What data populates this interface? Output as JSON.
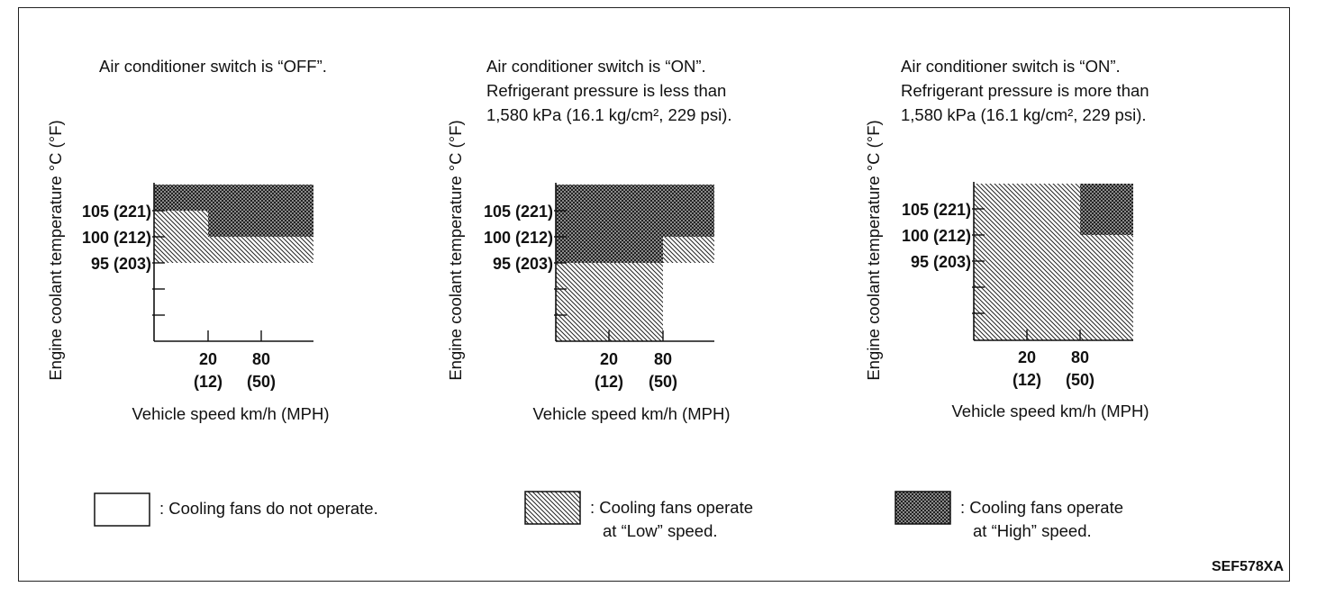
{
  "y_axis_label": "Engine coolant temperature °C (°F)",
  "x_axis_label": "Vehicle speed km/h (MPH)",
  "y_ticks": [
    "105 (221)",
    "100 (212)",
    "95 (203)"
  ],
  "x_ticks": [
    {
      "kmh": "20",
      "mph": "(12)"
    },
    {
      "kmh": "80",
      "mph": "(50)"
    }
  ],
  "panels": [
    {
      "title_lines": [
        "Air conditioner switch is “OFF”."
      ],
      "zones": [
        {
          "mode": "low",
          "from_speed": 0,
          "to_speed": "max",
          "temp_from": 95,
          "temp_to": 100
        },
        {
          "mode": "low",
          "from_speed": 0,
          "to_speed": 20,
          "temp_from": 100,
          "temp_to": 105
        },
        {
          "mode": "high",
          "from_speed": 20,
          "to_speed": "max",
          "temp_from": 100,
          "temp_to": 105
        },
        {
          "mode": "high",
          "from_speed": 0,
          "to_speed": "max",
          "temp_from": 105,
          "temp_to": "max"
        }
      ]
    },
    {
      "title_lines": [
        "Air conditioner switch is “ON”.",
        "Refrigerant pressure is less than",
        "1,580 kPa (16.1 kg/cm², 229 psi)."
      ],
      "zones": [
        {
          "mode": "low",
          "from_speed": 0,
          "to_speed": 80,
          "temp_from": "min",
          "temp_to": 95
        },
        {
          "mode": "high",
          "from_speed": 0,
          "to_speed": 80,
          "temp_from": 95,
          "temp_to": 100
        },
        {
          "mode": "low",
          "from_speed": 80,
          "to_speed": "max",
          "temp_from": 95,
          "temp_to": 100
        },
        {
          "mode": "high",
          "from_speed": 0,
          "to_speed": "max",
          "temp_from": 100,
          "temp_to": "max"
        }
      ]
    },
    {
      "title_lines": [
        "Air conditioner switch is “ON”.",
        "Refrigerant pressure is more than",
        "1,580 kPa (16.1 kg/cm², 229 psi)."
      ],
      "zones": [
        {
          "mode": "low",
          "from_speed": 0,
          "to_speed": 80,
          "temp_from": "min",
          "temp_to": "max"
        },
        {
          "mode": "low",
          "from_speed": 80,
          "to_speed": "max",
          "temp_from": "min",
          "temp_to": 100
        },
        {
          "mode": "high",
          "from_speed": 80,
          "to_speed": "max",
          "temp_from": 100,
          "temp_to": "max"
        }
      ]
    }
  ],
  "legend": [
    {
      "pattern": "off",
      "lines": [
        ": Cooling fans do not operate."
      ]
    },
    {
      "pattern": "low",
      "lines": [
        ": Cooling fans operate",
        "at “Low” speed."
      ]
    },
    {
      "pattern": "high",
      "lines": [
        ": Cooling fans operate",
        "at “High” speed."
      ]
    }
  ],
  "figure_code": "SEF578XA"
}
